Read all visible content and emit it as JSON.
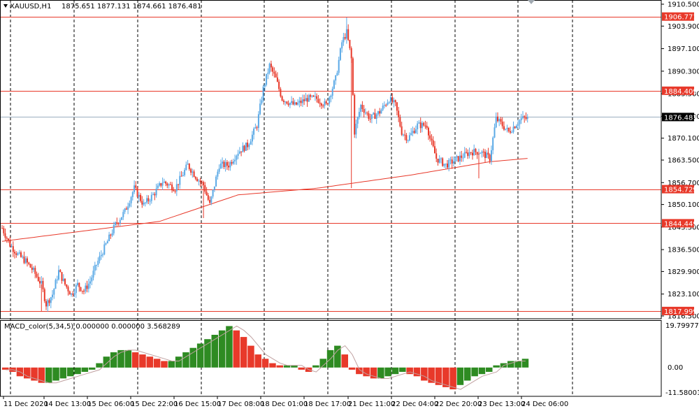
{
  "header": {
    "symbol_label": "XAUUSD,H1",
    "ohlc_label": "1875.651 1877.131 1874.661 1876.481"
  },
  "indicator": {
    "label": "MACD_color(5,34,5) 0.000000 0.000000 3.568289",
    "scale_labels": [
      "19.799775",
      "0.00",
      "-11.580018"
    ]
  },
  "colors": {
    "bull": "#5aa9e6",
    "bear": "#e8392a",
    "ma": "#e8392a",
    "level": "#e8392a",
    "current_price_line": "#9aaec0",
    "hist_up": "#2e8b22",
    "hist_down": "#e8392a",
    "signal": "#c0a0a0"
  },
  "chart_data": [
    {
      "type": "candlestick",
      "symbol": "XAUUSD",
      "timeframe": "H1",
      "ylim": [
        1816.5,
        1910.5
      ],
      "y_tick_labels": [
        "1910.500",
        "1903.900",
        "1897.100",
        "1890.300",
        "1883.500",
        "1876.700",
        "1870.100",
        "1863.500",
        "1856.700",
        "1850.100",
        "1843.300",
        "1836.500",
        "1829.900",
        "1823.100",
        "1816.500"
      ],
      "x_tick_labels": [
        "11 Dec 2020",
        "14 Dec 13:00",
        "15 Dec 06:00",
        "15 Dec 22:00",
        "16 Dec 15:00",
        "17 Dec 08:00",
        "18 Dec 01:00",
        "18 Dec 17:00",
        "21 Dec 11:00",
        "22 Dec 04:00",
        "22 Dec 20:00",
        "23 Dec 13:00",
        "24 Dec 06:00"
      ],
      "horizontal_levels": [
        {
          "value": 1906.771,
          "label": "1906.771"
        },
        {
          "value": 1884.409,
          "label": "1884.409"
        },
        {
          "value": 1854.729,
          "label": "1854.729"
        },
        {
          "value": 1844.449,
          "label": "1844.449"
        },
        {
          "value": 1817.999,
          "label": "1817.999"
        }
      ],
      "current_price": {
        "value": 1876.481,
        "label": "1876.481"
      },
      "close_path": [
        [
          0,
          1843
        ],
        [
          5,
          1838
        ],
        [
          10,
          1835
        ],
        [
          15,
          1833
        ],
        [
          20,
          1830
        ],
        [
          25,
          1826
        ],
        [
          28,
          1820
        ],
        [
          32,
          1823
        ],
        [
          36,
          1830
        ],
        [
          40,
          1826
        ],
        [
          44,
          1823
        ],
        [
          48,
          1826
        ],
        [
          52,
          1824
        ],
        [
          56,
          1827
        ],
        [
          60,
          1832
        ],
        [
          66,
          1838
        ],
        [
          72,
          1844
        ],
        [
          78,
          1848
        ],
        [
          84,
          1855
        ],
        [
          90,
          1850
        ],
        [
          96,
          1853
        ],
        [
          102,
          1857
        ],
        [
          110,
          1855
        ],
        [
          118,
          1862
        ],
        [
          124,
          1858
        ],
        [
          128,
          1856
        ],
        [
          132,
          1850
        ],
        [
          138,
          1862
        ],
        [
          144,
          1862
        ],
        [
          150,
          1866
        ],
        [
          156,
          1868
        ],
        [
          162,
          1874
        ],
        [
          166,
          1885
        ],
        [
          170,
          1892
        ],
        [
          174,
          1888
        ],
        [
          178,
          1882
        ],
        [
          186,
          1880
        ],
        [
          194,
          1882
        ],
        [
          200,
          1882
        ],
        [
          206,
          1880
        ],
        [
          212,
          1888
        ],
        [
          216,
          1899
        ],
        [
          219,
          1902
        ],
        [
          222,
          1894
        ],
        [
          224,
          1872
        ],
        [
          228,
          1880
        ],
        [
          234,
          1876
        ],
        [
          240,
          1878
        ],
        [
          246,
          1882
        ],
        [
          250,
          1880
        ],
        [
          254,
          1872
        ],
        [
          258,
          1870
        ],
        [
          264,
          1874
        ],
        [
          270,
          1874
        ],
        [
          272,
          1870
        ],
        [
          276,
          1864
        ],
        [
          282,
          1862
        ],
        [
          290,
          1864
        ],
        [
          298,
          1866
        ],
        [
          304,
          1866
        ],
        [
          310,
          1864
        ],
        [
          314,
          1876
        ],
        [
          318,
          1874
        ],
        [
          322,
          1872
        ],
        [
          326,
          1874
        ],
        [
          330,
          1876
        ],
        [
          334,
          1876
        ]
      ],
      "moving_average": [
        [
          0,
          1839
        ],
        [
          50,
          1842
        ],
        [
          100,
          1845
        ],
        [
          150,
          1853
        ],
        [
          200,
          1855
        ],
        [
          260,
          1859
        ],
        [
          310,
          1863
        ],
        [
          334,
          1864
        ]
      ]
    },
    {
      "type": "bar",
      "name": "MACD_color(5,34,5)",
      "ylim": [
        -11.580018,
        19.799775
      ],
      "values": [
        -1,
        -2,
        -4,
        -5,
        -6,
        -7,
        -7,
        -6,
        -5,
        -4,
        -3,
        -2,
        -1,
        2,
        5,
        7,
        8,
        8,
        7,
        6,
        5,
        4,
        3,
        3,
        5,
        7,
        9,
        11,
        13,
        15,
        17,
        19,
        17,
        14,
        10,
        6,
        4,
        2,
        1,
        1,
        1,
        -1,
        -2,
        1,
        4,
        8,
        10,
        6,
        -1,
        -3,
        -4,
        -5,
        -5,
        -4,
        -3,
        -2,
        -3,
        -4,
        -6,
        -7,
        -8,
        -9,
        -10,
        -8,
        -6,
        -4,
        -3,
        -2,
        1,
        2,
        3,
        3,
        4
      ]
    }
  ]
}
